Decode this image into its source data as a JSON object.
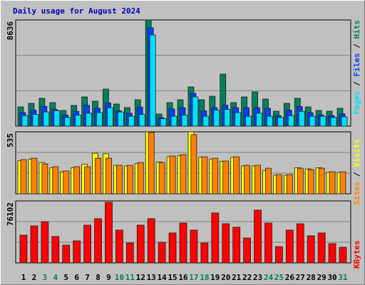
{
  "title": "Daily usage for August 2024",
  "categories": [
    "1",
    "2",
    "3",
    "4",
    "5",
    "6",
    "7",
    "8",
    "9",
    "10",
    "11",
    "12",
    "13",
    "14",
    "15",
    "16",
    "17",
    "18",
    "19",
    "20",
    "21",
    "22",
    "23",
    "24",
    "25",
    "26",
    "27",
    "28",
    "29",
    "30",
    "31"
  ],
  "category_colors": [
    "#000000",
    "#000000",
    "#00805c",
    "#00805c",
    "#000000",
    "#000000",
    "#000000",
    "#000000",
    "#000000",
    "#00805c",
    "#00805c",
    "#000000",
    "#000000",
    "#000000",
    "#000000",
    "#000000",
    "#00805c",
    "#00805c",
    "#000000",
    "#000000",
    "#000000",
    "#000000",
    "#000000",
    "#00805c",
    "#00805c",
    "#000000",
    "#000000",
    "#000000",
    "#000000",
    "#000000",
    "#00805c"
  ],
  "legend_separator": " / ",
  "chart_data": [
    {
      "type": "bar",
      "ylim": [
        0,
        8636
      ],
      "yticks": [
        8636
      ],
      "grid": true,
      "series": [
        {
          "name": "Hits",
          "color": "#00805c",
          "values": [
            1565,
            1855,
            2260,
            1913,
            1275,
            1680,
            2376,
            2029,
            3014,
            1797,
            1507,
            2144,
            8636,
            985,
            1913,
            2144,
            3188,
            2144,
            2434,
            4231,
            1913,
            2376,
            2782,
            2202,
            1217,
            1855,
            2260,
            1565,
            1275,
            1217,
            1449
          ]
        },
        {
          "name": "Files",
          "color": "#0040ff",
          "values": [
            1100,
            1300,
            1600,
            1350,
            900,
            1200,
            1700,
            1450,
            1900,
            1250,
            1050,
            1550,
            8000,
            700,
            1400,
            1500,
            2666,
            1250,
            1500,
            1700,
            1500,
            1500,
            1500,
            1450,
            850,
            1300,
            1600,
            1100,
            900,
            850,
            1000
          ]
        },
        {
          "name": "Pages",
          "color": "#00e0ff",
          "values": [
            850,
            950,
            1150,
            1250,
            700,
            900,
            1050,
            1100,
            1500,
            1150,
            800,
            950,
            7418,
            600,
            800,
            900,
            2376,
            800,
            1300,
            1350,
            1100,
            800,
            1050,
            800,
            700,
            850,
            1200,
            800,
            800,
            700,
            750
          ]
        }
      ]
    },
    {
      "type": "bar",
      "ylim": [
        0,
        535
      ],
      "yticks": [
        535
      ],
      "grid": true,
      "series": [
        {
          "name": "Visits",
          "color": "#ffff00",
          "values": [
            285,
            300,
            270,
            225,
            190,
            225,
            255,
            350,
            345,
            245,
            240,
            260,
            535,
            275,
            320,
            330,
            535,
            315,
            300,
            280,
            315,
            240,
            240,
            200,
            160,
            160,
            225,
            215,
            225,
            185,
            185
          ]
        },
        {
          "name": "Sites",
          "color": "#ff8000",
          "values": [
            295,
            307,
            258,
            234,
            197,
            234,
            234,
            307,
            307,
            246,
            246,
            270,
            530,
            270,
            326,
            338,
            510,
            320,
            307,
            283,
            320,
            246,
            246,
            221,
            166,
            166,
            221,
            209,
            221,
            190,
            190
          ]
        }
      ]
    },
    {
      "type": "bar",
      "ylim": [
        0,
        76102
      ],
      "yticks": [
        76102
      ],
      "grid": true,
      "series": [
        {
          "name": "KBytes",
          "color": "#ff0000",
          "values": [
            34100,
            45500,
            50700,
            32400,
            21900,
            27100,
            46400,
            54300,
            74400,
            40300,
            24500,
            46400,
            54300,
            25400,
            36800,
            49000,
            40300,
            24500,
            61300,
            48100,
            43800,
            30600,
            64800,
            49000,
            20100,
            40300,
            48100,
            33300,
            36800,
            23600,
            19300
          ]
        }
      ]
    }
  ]
}
